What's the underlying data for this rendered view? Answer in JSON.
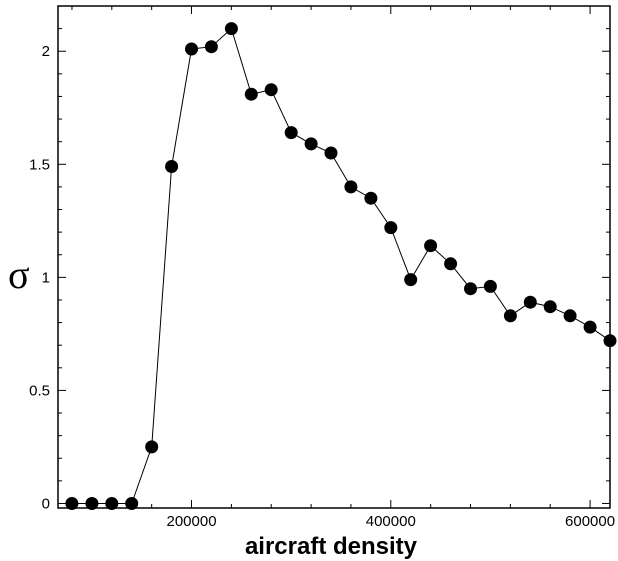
{
  "chart_data": {
    "type": "line",
    "title": "",
    "xlabel": "aircraft density",
    "ylabel": "σ",
    "xlim": [
      66000,
      620000
    ],
    "ylim": [
      -0.02,
      2.2
    ],
    "grid": false,
    "legend": "none",
    "x_ticks": [
      {
        "value": 200000,
        "label": "200000"
      },
      {
        "value": 400000,
        "label": "400000"
      },
      {
        "value": 600000,
        "label": "600000"
      }
    ],
    "y_ticks": [
      {
        "value": 0,
        "label": "0"
      },
      {
        "value": 0.5,
        "label": "0.5"
      },
      {
        "value": 1,
        "label": "1"
      },
      {
        "value": 1.5,
        "label": "1.5"
      },
      {
        "value": 2,
        "label": "2"
      }
    ],
    "marker": "filled-circle",
    "line_color": "#000000",
    "marker_color": "#000000",
    "series": [
      {
        "x": [
          80000,
          100000,
          120000,
          140000,
          160000,
          180000,
          200000,
          220000,
          240000,
          260000,
          280000,
          300000,
          320000,
          340000,
          360000,
          380000,
          400000,
          420000,
          440000,
          460000,
          480000,
          500000,
          520000,
          540000,
          560000,
          580000,
          600000,
          620000
        ],
        "y": [
          0.0,
          0.0,
          0.0,
          0.0,
          0.25,
          1.49,
          2.01,
          2.02,
          2.1,
          1.81,
          1.83,
          1.64,
          1.59,
          1.55,
          1.4,
          1.35,
          1.22,
          0.99,
          1.14,
          1.06,
          0.95,
          0.96,
          0.83,
          0.89,
          0.87,
          0.83,
          0.78,
          0.72
        ]
      }
    ]
  }
}
